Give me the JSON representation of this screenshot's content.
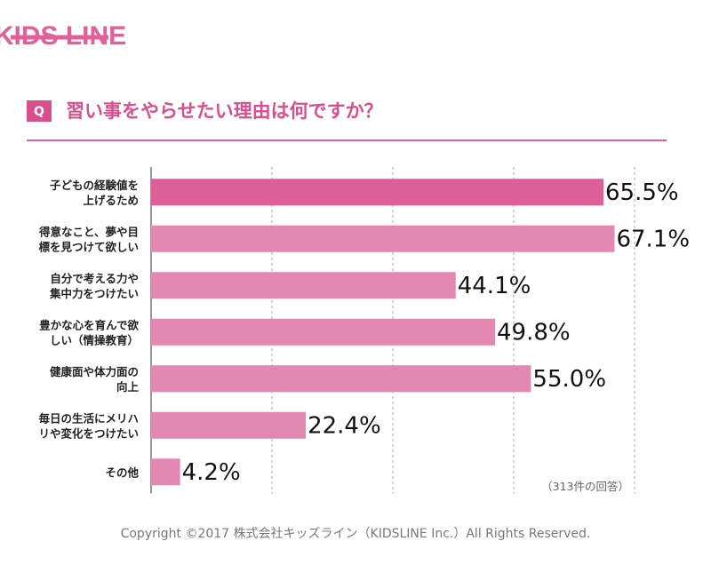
{
  "logo": "KIDS LINE",
  "chart_data": {
    "type": "bar",
    "orientation": "horizontal",
    "title": "習い事をやらせたい理由は何ですか？",
    "title_badge": "Q",
    "categories": [
      [
        "子どもの経験値を",
        "上げるため"
      ],
      [
        "得意なこと、夢や目",
        "標を見つけて欲しい"
      ],
      [
        "自分で考える力や",
        "集中力をつけたい"
      ],
      [
        "豊かな心を育んで欲",
        "しい（情操教育）"
      ],
      [
        "健康面や体力面の",
        "向上"
      ],
      [
        "毎日の生活にメリハ",
        "リや変化をつけたい"
      ],
      [
        "その他"
      ]
    ],
    "values": [
      65.5,
      67.1,
      44.1,
      49.8,
      55.0,
      22.4,
      4.2
    ],
    "value_labels": [
      "65.5%",
      "67.1%",
      "44.1%",
      "49.8%",
      "55.0%",
      "22.4%",
      "4.2%"
    ],
    "colors": [
      "#de5f98",
      "#e387b3",
      "#e387b3",
      "#e387b3",
      "#e387b3",
      "#e387b3",
      "#e387b3"
    ],
    "xlim": [
      0,
      70
    ],
    "xticks": [
      0,
      17.5,
      35,
      52.5,
      70
    ],
    "grid": true,
    "note": "（313件の回答）"
  },
  "footer": "Copyright ©2017 株式会社キッズライン（KIDSLINE Inc.）All Rights Reserved."
}
